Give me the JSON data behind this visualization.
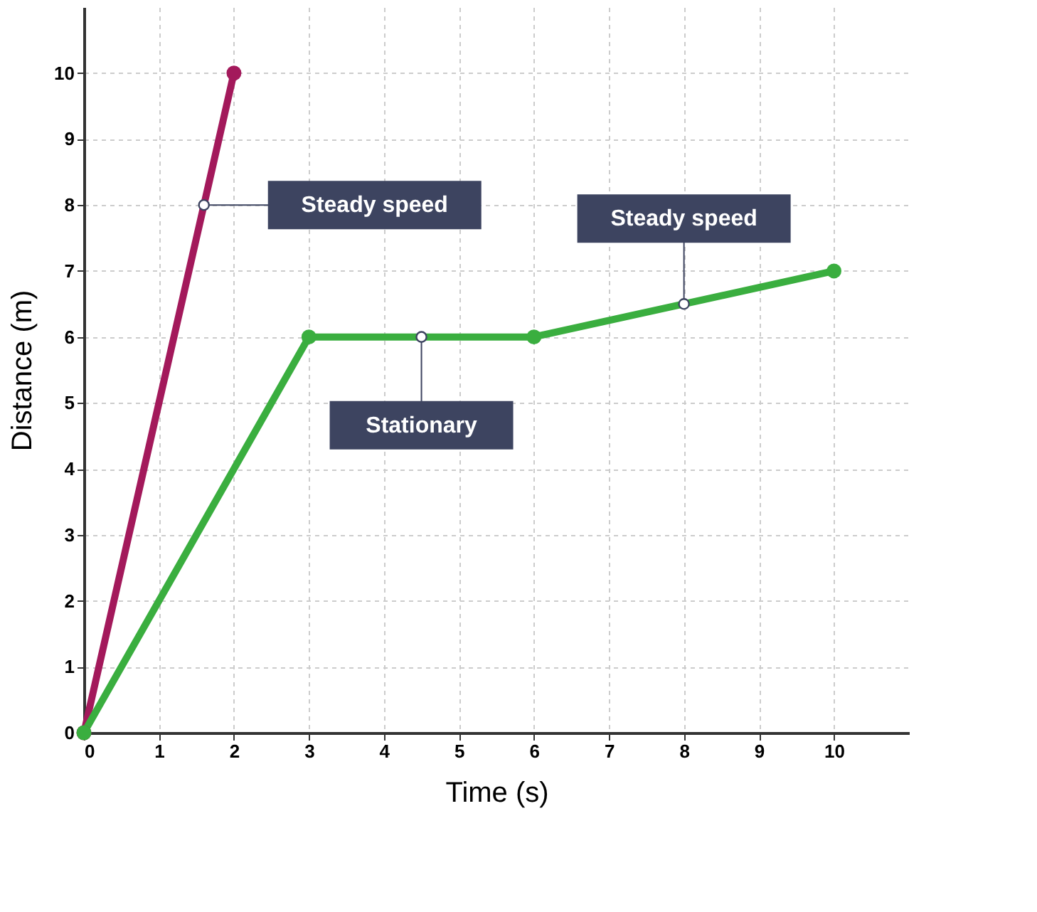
{
  "chart_data": {
    "type": "line",
    "xlabel": "Time (s)",
    "ylabel": "Distance (m)",
    "xlim": [
      0,
      11
    ],
    "ylim": [
      0,
      11
    ],
    "xticks": [
      0,
      1,
      2,
      3,
      4,
      5,
      6,
      7,
      8,
      9,
      10
    ],
    "yticks": [
      0,
      1,
      2,
      3,
      4,
      5,
      6,
      7,
      8,
      9,
      10
    ],
    "grid": true,
    "marker": "circle",
    "line_style": "solid",
    "series": [
      {
        "color": "#a3195b",
        "x": [
          0,
          2
        ],
        "values": [
          0,
          10
        ]
      },
      {
        "color": "#3aae3f",
        "x": [
          0,
          3,
          6,
          10
        ],
        "values": [
          0,
          6,
          6,
          7
        ]
      }
    ],
    "annotations": [
      {
        "text": "Steady speed",
        "x": 1.6,
        "y": 8
      },
      {
        "text": "Steady speed",
        "x": 8,
        "y": 6.5
      },
      {
        "text": "Stationary",
        "x": 4.5,
        "y": 6
      }
    ]
  }
}
